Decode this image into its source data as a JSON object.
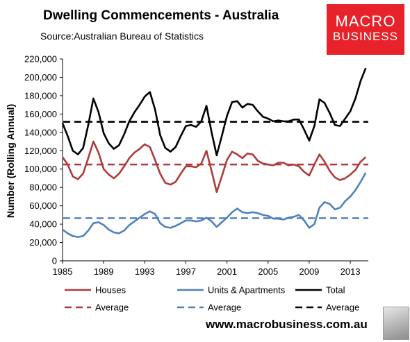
{
  "header": {
    "title": "Dwelling Commencements - Australia",
    "source": "Source:Australian Bureau of Statistics"
  },
  "logo": {
    "line1": "MACRO",
    "line2": "BUSINESS"
  },
  "footer": {
    "url": "www.macrobusiness.com.au"
  },
  "chart_data": {
    "type": "line",
    "ylabel": "Number (Rolling Annual)",
    "xlabel": "",
    "xlim": [
      1985,
      2014.75
    ],
    "ylim": [
      0,
      220000
    ],
    "x_ticks": [
      "1985",
      "1989",
      "1993",
      "1997",
      "2001",
      "2005",
      "2009",
      "2013"
    ],
    "y_ticks": [
      "0",
      "20,000",
      "40,000",
      "60,000",
      "80,000",
      "100,000",
      "120,000",
      "140,000",
      "160,000",
      "180,000",
      "200,000",
      "220,000"
    ],
    "grid": false,
    "legend_position": "bottom",
    "x": [
      1985,
      1985.5,
      1986,
      1986.5,
      1987,
      1987.5,
      1988,
      1988.5,
      1989,
      1989.5,
      1990,
      1990.5,
      1991,
      1991.5,
      1992,
      1992.5,
      1993,
      1993.5,
      1994,
      1994.5,
      1995,
      1995.5,
      1996,
      1996.5,
      1997,
      1997.5,
      1998,
      1998.5,
      1999,
      1999.5,
      2000,
      2000.5,
      2001,
      2001.5,
      2002,
      2002.5,
      2003,
      2003.5,
      2004,
      2004.5,
      2005,
      2005.5,
      2006,
      2006.5,
      2007,
      2007.5,
      2008,
      2008.5,
      2009,
      2009.5,
      2010,
      2010.5,
      2011,
      2011.5,
      2012,
      2012.5,
      2013,
      2013.5,
      2014,
      2014.5
    ],
    "series": [
      {
        "name": "Houses",
        "color": "#b03a3a",
        "values": [
          113000,
          105000,
          92000,
          89000,
          95000,
          112000,
          130000,
          118000,
          100000,
          94000,
          90000,
          95000,
          103000,
          112000,
          118000,
          122000,
          127000,
          124000,
          110000,
          95000,
          85000,
          83000,
          86000,
          95000,
          103000,
          103000,
          102000,
          106000,
          120000,
          98000,
          75000,
          92000,
          110000,
          119000,
          116000,
          112000,
          117000,
          116000,
          109000,
          106000,
          105000,
          104000,
          107000,
          107000,
          104000,
          105000,
          103000,
          97000,
          93000,
          105000,
          116000,
          108000,
          98000,
          91000,
          88000,
          90000,
          94000,
          99000,
          108000,
          113000
        ]
      },
      {
        "name": "Units & Apartments",
        "color": "#4f81bd",
        "values": [
          34000,
          30000,
          27000,
          26000,
          27000,
          33000,
          41000,
          42000,
          39000,
          34000,
          31000,
          30000,
          33000,
          39000,
          43000,
          47000,
          51000,
          54000,
          51000,
          41000,
          37000,
          36000,
          38000,
          41000,
          44000,
          44000,
          43000,
          44000,
          47000,
          43000,
          37000,
          42000,
          47000,
          53000,
          57000,
          53000,
          52000,
          53000,
          52000,
          50000,
          49000,
          46000,
          46000,
          45000,
          47000,
          48000,
          50000,
          44000,
          36000,
          40000,
          58000,
          64000,
          62000,
          56000,
          58000,
          65000,
          70000,
          77000,
          86000,
          96000
        ]
      },
      {
        "name": "Total",
        "color": "#000000",
        "values": [
          150000,
          136000,
          120000,
          116000,
          123000,
          148000,
          177000,
          162000,
          139000,
          128000,
          122000,
          126000,
          138000,
          152000,
          162000,
          170000,
          179000,
          184000,
          165000,
          137000,
          123000,
          119000,
          124000,
          136000,
          147000,
          148000,
          146000,
          152000,
          169000,
          140000,
          115000,
          136000,
          158000,
          173000,
          174000,
          167000,
          171000,
          170000,
          163000,
          157000,
          155000,
          152000,
          153000,
          152000,
          152000,
          154000,
          154000,
          143000,
          131000,
          147000,
          176000,
          172000,
          161000,
          148000,
          147000,
          155000,
          163000,
          177000,
          196000,
          210000
        ]
      }
    ],
    "averages": [
      {
        "name": "Average",
        "of": "Houses",
        "value": 105000,
        "color": "#b03a3a"
      },
      {
        "name": "Average",
        "of": "Units & Apartments",
        "value": 46500,
        "color": "#4f81bd"
      },
      {
        "name": "Average",
        "of": "Total",
        "value": 151500,
        "color": "#000000"
      }
    ]
  }
}
